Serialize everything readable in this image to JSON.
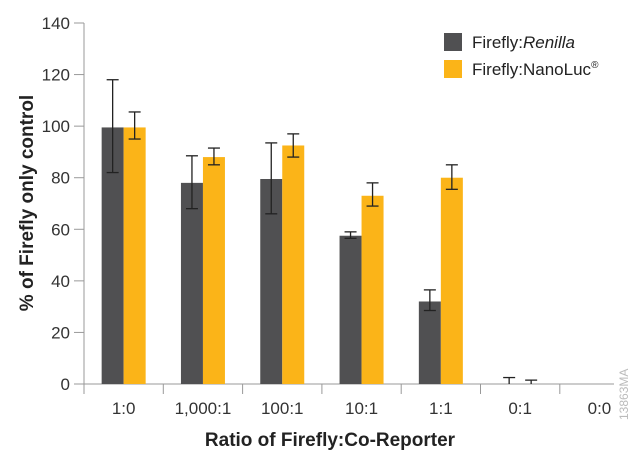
{
  "chart_data": {
    "type": "bar",
    "xlabel": "Ratio of Firefly:Co-Reporter",
    "ylabel": "% of Firefly only control",
    "ylim": [
      0,
      140
    ],
    "yticks": [
      0,
      20,
      40,
      60,
      80,
      100,
      120,
      140
    ],
    "grid": false,
    "legend_placement": "top-right",
    "categories": [
      "1:0",
      "1,000:1",
      "100:1",
      "10:1",
      "1:1",
      "0:1",
      "0:0"
    ],
    "series": [
      {
        "name": "Firefly:Renilla",
        "name_prefix": "Firefly:",
        "name_italic": "Renilla",
        "color": "#505052",
        "values": [
          99.5,
          78,
          79.5,
          57.5,
          32,
          0,
          null
        ],
        "error_low": [
          82,
          68,
          66,
          56.5,
          28.5,
          0,
          null
        ],
        "error_high": [
          118,
          88.5,
          93.5,
          59,
          36.5,
          2.5,
          null
        ]
      },
      {
        "name": "Firefly:NanoLuc®",
        "name_prefix": "Firefly:NanoLuc",
        "name_sup": "®",
        "color": "#fbb418",
        "values": [
          99.5,
          88,
          92.5,
          73,
          80,
          0,
          null
        ],
        "error_low": [
          95,
          85,
          88,
          69,
          75.5,
          0,
          null
        ],
        "error_high": [
          105.5,
          91.5,
          97,
          78,
          85,
          1.5,
          null
        ]
      }
    ]
  },
  "watermark": "13863MA"
}
